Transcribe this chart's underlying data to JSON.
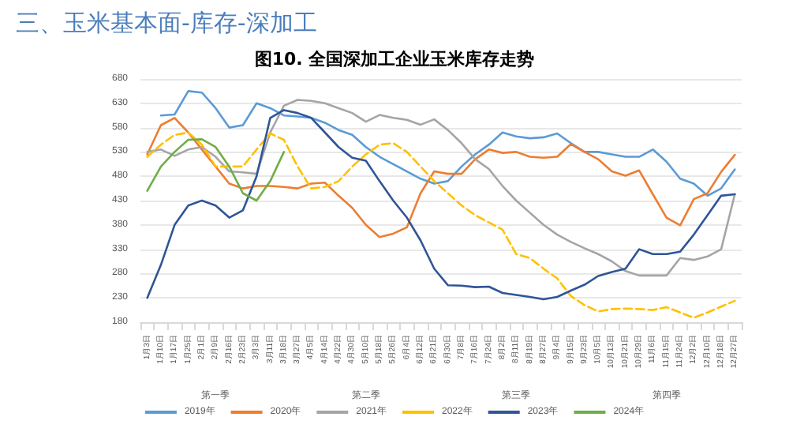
{
  "chart_data": {
    "type": "line",
    "title": "三、玉米基本面-库存-深加工",
    "subtitle": "图10. 全国深加工企业玉米库存走势",
    "categories": [
      "1月3日",
      "1月10日",
      "1月17日",
      "1月25日",
      "2月1日",
      "2月9日",
      "2月16日",
      "2月23日",
      "3月3日",
      "3月11日",
      "3月18日",
      "3月27日",
      "4月5日",
      "4月14日",
      "4月22日",
      "4月30日",
      "5月10日",
      "5月18日",
      "5月26日",
      "6月4日",
      "6月12日",
      "6月21日",
      "6月30日",
      "7月8日",
      "7月16日",
      "7月24日",
      "8月2日",
      "8月11日",
      "8月19日",
      "8月27日",
      "9月4日",
      "9月15日",
      "9月23日",
      "10月5日",
      "10月13日",
      "10月21日",
      "10月29日",
      "11月6日",
      "11月15日",
      "11月24日",
      "12月2日",
      "12月10日",
      "12月18日",
      "12月27日"
    ],
    "annotations": [
      "第一季",
      "第二季",
      "第三季",
      "第四季"
    ],
    "series": [
      {
        "name": "2019年",
        "color": "#5b9bd5",
        "values": [
          null,
          605,
          607,
          655,
          652,
          620,
          580,
          585,
          630,
          620,
          605,
          603,
          600,
          590,
          575,
          565,
          540,
          520,
          505,
          490,
          475,
          465,
          470,
          500,
          525,
          545,
          570,
          562,
          558,
          560,
          568,
          548,
          530,
          530,
          525,
          520,
          520,
          535,
          510,
          475,
          465,
          440,
          455,
          494
        ]
      },
      {
        "name": "2020年",
        "color": "#ed7d31",
        "values": [
          525,
          585,
          600,
          570,
          535,
          500,
          465,
          455,
          460,
          460,
          458,
          455,
          465,
          467,
          440,
          415,
          380,
          355,
          362,
          375,
          445,
          490,
          485,
          485,
          515,
          535,
          528,
          530,
          520,
          518,
          520,
          546,
          530,
          515,
          490,
          481,
          492,
          443,
          395,
          379,
          433,
          445,
          489,
          524
        ]
      },
      {
        "name": "2021年",
        "color": "#a5a5a5",
        "values": [
          530,
          535,
          522,
          535,
          540,
          520,
          490,
          488,
          485,
          570,
          625,
          637,
          635,
          630,
          620,
          610,
          592,
          606,
          600,
          596,
          586,
          597,
          575,
          548,
          515,
          495,
          460,
          430,
          405,
          380,
          360,
          345,
          332,
          320,
          305,
          285,
          276,
          276,
          276,
          312,
          308,
          315,
          330,
          443
        ]
      },
      {
        "name": "2022年",
        "color": "#ffc000",
        "line_style": "dashed",
        "values": [
          520,
          545,
          565,
          570,
          545,
          500,
          500,
          500,
          535,
          568,
          555,
          500,
          455,
          458,
          470,
          500,
          525,
          545,
          548,
          530,
          500,
          470,
          445,
          420,
          400,
          385,
          370,
          320,
          312,
          290,
          270,
          234,
          215,
          202,
          207,
          208,
          207,
          205,
          211,
          200,
          189,
          200,
          212,
          224
        ]
      },
      {
        "name": "2023年",
        "color": "#2f5597",
        "values": [
          230,
          298,
          380,
          420,
          430,
          420,
          395,
          410,
          480,
          600,
          616,
          610,
          600,
          570,
          540,
          518,
          512,
          470,
          430,
          395,
          348,
          290,
          256,
          255,
          252,
          253,
          240,
          236,
          232,
          227,
          232,
          245,
          257,
          275,
          283,
          290,
          330,
          320,
          320,
          325,
          360,
          400,
          440,
          443
        ]
      },
      {
        "name": "2024年",
        "color": "#70ad47",
        "values": [
          450,
          500,
          530,
          555,
          556,
          540,
          500,
          445,
          430,
          470,
          530,
          null,
          null,
          null,
          null,
          null,
          null,
          null,
          null,
          null,
          null,
          null,
          null,
          null,
          null,
          null,
          null,
          null,
          null,
          null,
          null,
          null,
          null,
          null,
          null,
          null,
          null,
          null,
          null,
          null,
          null,
          null,
          null,
          null
        ]
      }
    ],
    "ylim": [
      180,
      680
    ],
    "yticks": [
      180,
      230,
      280,
      330,
      380,
      430,
      480,
      530,
      580,
      630,
      680
    ],
    "grid": "y",
    "legend": "bottom",
    "marker": "none",
    "line_style": "solid"
  }
}
